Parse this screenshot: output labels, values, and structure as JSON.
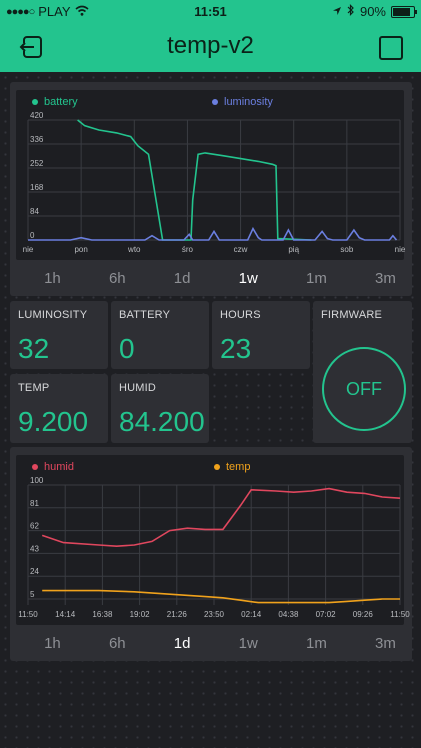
{
  "statusbar": {
    "carrier": "PLAY",
    "time": "11:51",
    "battery_percent": "90%",
    "battery_level": 0.9
  },
  "app": {
    "title": "temp-v2",
    "back_icon": "exit-icon",
    "settings_icon": "square-icon"
  },
  "colors": {
    "accent": "#23c48e",
    "battery": "#23c48e",
    "luminosity": "#6b7fe0",
    "humid": "#e0475e",
    "temp": "#f0a21c"
  },
  "graph1": {
    "legend": [
      {
        "name": "battery",
        "color": "#23c48e"
      },
      {
        "name": "luminosity",
        "color": "#6b7fe0"
      }
    ],
    "periods": [
      "1h",
      "6h",
      "1d",
      "1w",
      "1m",
      "3m"
    ],
    "active_period": "1w"
  },
  "values": {
    "luminosity": {
      "label": "LUMINOSITY",
      "value": "32"
    },
    "battery": {
      "label": "BATTERY",
      "value": "0"
    },
    "hours": {
      "label": "HOURS",
      "value": "23"
    },
    "temp": {
      "label": "TEMP",
      "value": "9.200"
    },
    "humid": {
      "label": "HUMID",
      "value": "84.200"
    }
  },
  "firmware": {
    "label": "FIRMWARE",
    "button": "OFF"
  },
  "graph2": {
    "legend": [
      {
        "name": "humid",
        "color": "#e0475e"
      },
      {
        "name": "temp",
        "color": "#f0a21c"
      }
    ],
    "periods": [
      "1h",
      "6h",
      "1d",
      "1w",
      "1m",
      "3m"
    ],
    "active_period": "1d"
  },
  "chart_data": [
    {
      "type": "line",
      "x": [
        "nie",
        "pon",
        "wto",
        "śro",
        "czw",
        "pią",
        "sob",
        "nie"
      ],
      "ylim": [
        0,
        420
      ],
      "yticks": [
        0,
        84,
        168,
        252,
        336,
        420
      ],
      "grid": true,
      "legend": "top",
      "series": [
        {
          "name": "battery",
          "color": "#23c48e",
          "points": [
            [
              1.4,
              420
            ],
            [
              1.6,
              400
            ],
            [
              2.0,
              385
            ],
            [
              2.5,
              375
            ],
            [
              2.9,
              362
            ],
            [
              3.1,
              330
            ],
            [
              3.4,
              300
            ],
            [
              3.8,
              0
            ],
            [
              4.5,
              0
            ],
            [
              4.6,
              0
            ],
            [
              4.65,
              140
            ],
            [
              4.8,
              300
            ],
            [
              5.0,
              305
            ],
            [
              5.5,
              295
            ],
            [
              6.0,
              285
            ],
            [
              6.5,
              275
            ],
            [
              6.9,
              265
            ],
            [
              7.0,
              260
            ],
            [
              7.05,
              5
            ],
            [
              8.0,
              0
            ]
          ]
        },
        {
          "name": "luminosity",
          "color": "#6b7fe0",
          "points": [
            [
              0,
              0
            ],
            [
              1.2,
              0
            ],
            [
              1.5,
              8
            ],
            [
              1.8,
              0
            ],
            [
              3.3,
              0
            ],
            [
              3.5,
              15
            ],
            [
              3.7,
              0
            ],
            [
              4.4,
              0
            ],
            [
              4.55,
              20
            ],
            [
              4.65,
              0
            ],
            [
              5.1,
              0
            ],
            [
              5.25,
              30
            ],
            [
              5.35,
              10
            ],
            [
              5.4,
              0
            ],
            [
              6.2,
              0
            ],
            [
              6.35,
              40
            ],
            [
              6.5,
              8
            ],
            [
              6.6,
              0
            ],
            [
              7.2,
              0
            ],
            [
              7.35,
              35
            ],
            [
              7.5,
              0
            ],
            [
              8.1,
              0
            ],
            [
              8.3,
              30
            ],
            [
              8.45,
              5
            ],
            [
              8.6,
              0
            ],
            [
              9.0,
              0
            ],
            [
              9.2,
              35
            ],
            [
              9.35,
              8
            ],
            [
              9.5,
              0
            ],
            [
              10.2,
              0
            ],
            [
              10.3,
              15
            ],
            [
              10.4,
              0
            ]
          ]
        }
      ]
    },
    {
      "type": "line",
      "x": [
        "11:50",
        "14:14",
        "16:38",
        "19:02",
        "21:26",
        "23:50",
        "02:14",
        "04:38",
        "07:02",
        "09:26",
        "11:50"
      ],
      "ylim": [
        0,
        100
      ],
      "yticks": [
        5,
        24,
        43,
        62,
        81,
        100
      ],
      "grid": true,
      "legend": "top",
      "series": [
        {
          "name": "humid",
          "color": "#e0475e",
          "points": [
            [
              0.4,
              58
            ],
            [
              1.0,
              52
            ],
            [
              2.0,
              50
            ],
            [
              2.5,
              49
            ],
            [
              3.0,
              50
            ],
            [
              3.5,
              53
            ],
            [
              4.0,
              62
            ],
            [
              4.5,
              64
            ],
            [
              5.0,
              63
            ],
            [
              5.5,
              63
            ],
            [
              6.0,
              83
            ],
            [
              6.3,
              96
            ],
            [
              7.0,
              95
            ],
            [
              7.5,
              94
            ],
            [
              8.0,
              95
            ],
            [
              8.5,
              97
            ],
            [
              9.0,
              94
            ],
            [
              9.5,
              93
            ],
            [
              10.0,
              90
            ],
            [
              10.5,
              89
            ]
          ]
        },
        {
          "name": "temp",
          "color": "#f0a21c",
          "points": [
            [
              0.4,
              12
            ],
            [
              1.0,
              12
            ],
            [
              2.0,
              12
            ],
            [
              3.0,
              11
            ],
            [
              4.0,
              9
            ],
            [
              5.0,
              7
            ],
            [
              5.5,
              6
            ],
            [
              6.0,
              4
            ],
            [
              6.5,
              2
            ],
            [
              7.0,
              2
            ],
            [
              7.5,
              2
            ],
            [
              8.0,
              2
            ],
            [
              8.5,
              2
            ],
            [
              9.0,
              3
            ],
            [
              9.5,
              4
            ],
            [
              10.0,
              5
            ],
            [
              10.5,
              5
            ]
          ]
        }
      ]
    }
  ]
}
